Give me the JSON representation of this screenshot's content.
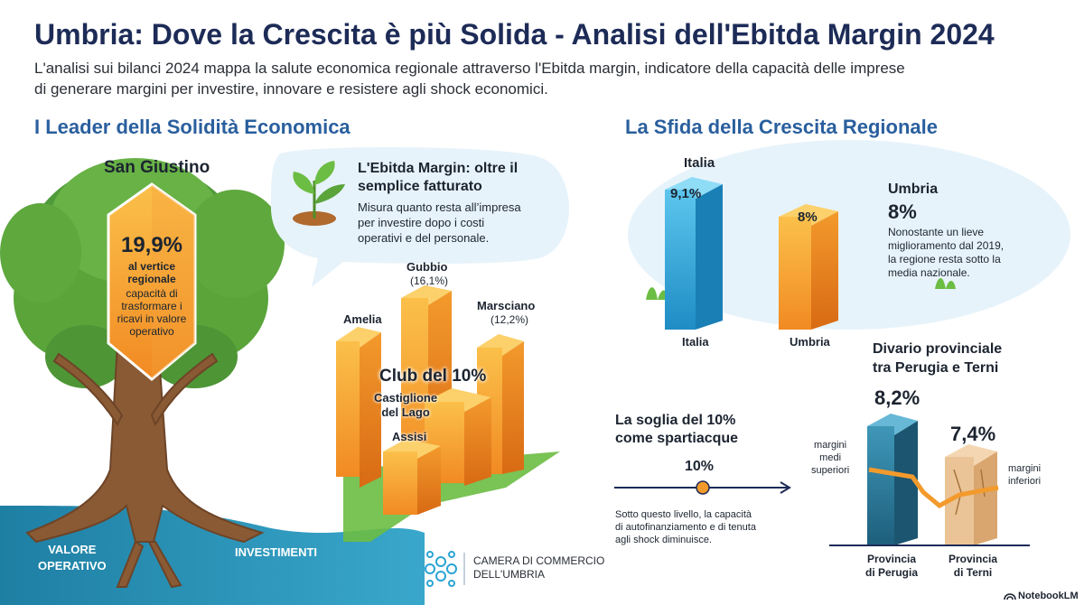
{
  "header": {
    "title": "Umbria: Dove la Crescita è più Solida - Analisi dell'Ebitda Margin 2024",
    "intro_line1": "L'analisi sui bilanci 2024 mappa la salute economica regionale attraverso l'Ebitda margin, indicatore della capacità delle imprese",
    "intro_line2": "di generare margini per investire, innovare e resistere agli shock economici."
  },
  "left": {
    "section_title": "I Leader della Solidità Economica",
    "tree": {
      "town": "San Giustino",
      "value": "19,9%",
      "label_line1": "al vertice",
      "label_line2": "regionale",
      "desc_line1": "capacità di",
      "desc_line2": "trasformare i",
      "desc_line3": "ricavi in valore",
      "desc_line4": "operativo",
      "root_left_line1": "VALORE",
      "root_left_line2": "OPERATIVO",
      "root_right": "INVESTIMENTI"
    },
    "callout": {
      "title_line1": "L'Ebitda Margin: oltre il",
      "title_line2": "semplice fatturato",
      "body_line1": "Misura quanto resta all’impresa",
      "body_line2": "per investire dopo i costi",
      "body_line3": "operativi e del personale."
    },
    "club": {
      "title": "Club del 10%",
      "gubbio": "Gubbio",
      "gubbio_val": "(16,1%)",
      "marsciano": "Marsciano",
      "marsciano_val": "(12,2%)",
      "amelia": "Amelia",
      "castiglione_line1": "Castiglione",
      "castiglione_line2": "del Lago",
      "assisi": "Assisi"
    }
  },
  "right": {
    "section_title": "La Sfida della Crescita Regionale",
    "comparison": {
      "top_label": "Italia",
      "italia_value": "9,1%",
      "umbria_value": "8%",
      "italia_label": "Italia",
      "umbria_label": "Umbria"
    },
    "umbria_note": {
      "title": "Umbria",
      "value": "8%",
      "line1": "Nonostante un lieve",
      "line2": "miglioramento dal 2019,",
      "line3": "la regione resta sotto la",
      "line4": "media nazionale."
    },
    "threshold": {
      "title_line1": "La soglia del 10%",
      "title_line2": "come spartiacque",
      "value": "10%",
      "line1": "Sotto questo livello, la capacità",
      "line2": "di autofinanziamento e di tenuta",
      "line3": "agli shock diminuisce."
    },
    "provincial": {
      "title_line1": "Divario provinciale",
      "title_line2": "tra Perugia e Terni",
      "perugia_value": "8,2%",
      "terni_value": "7,4%",
      "upper_line1": "margini",
      "upper_line2": "medi",
      "upper_line3": "superiori",
      "lower_line1": "margini",
      "lower_line2": "inferiori",
      "perugia_line1": "Provincia",
      "perugia_line2": "di Perugia",
      "terni_line1": "Provincia",
      "terni_line2": "di Terni"
    }
  },
  "footer": {
    "org_line1": "CAMERA DI COMMERCIO",
    "org_line2": "DELL'UMBRIA",
    "brand": "NotebookLM"
  },
  "colors": {
    "navy": "#1d2b57",
    "section_blue": "#2a5f9e",
    "orange": "#f39a2c",
    "blue": "#2aa4d6",
    "teal": "#2b6f86",
    "green": "#5aa43a"
  }
}
